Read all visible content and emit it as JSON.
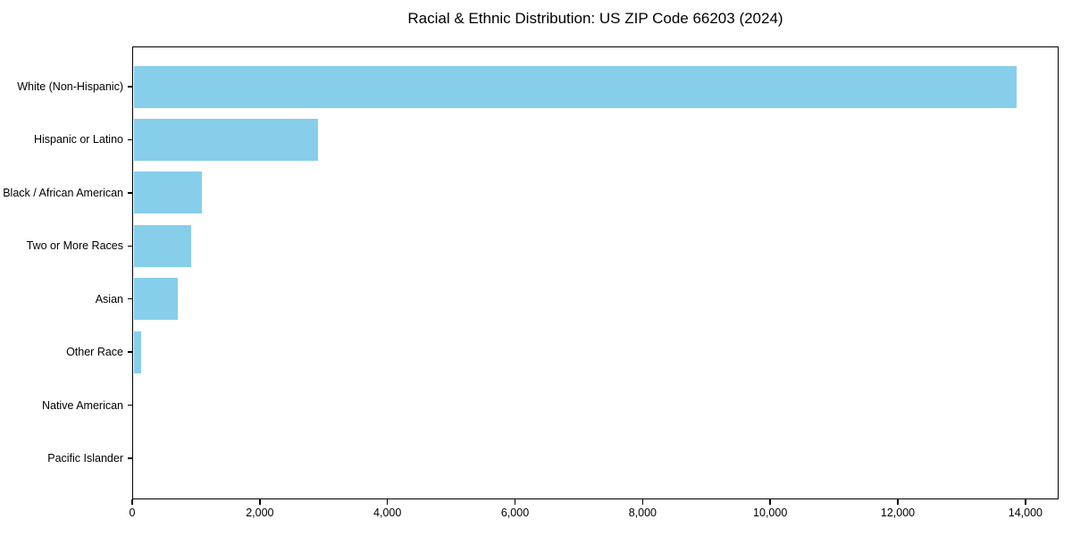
{
  "title": "Racial & Ethnic Distribution: US ZIP Code 66203 (2024)",
  "chart_data": {
    "type": "bar",
    "orientation": "horizontal",
    "title": "Racial & Ethnic Distribution: US ZIP Code 66203 (2024)",
    "xlabel": "",
    "ylabel": "",
    "categories": [
      "White (Non-Hispanic)",
      "Hispanic or Latino",
      "Black / African American",
      "Two or More Races",
      "Asian",
      "Other Race",
      "Native American",
      "Pacific Islander"
    ],
    "values": [
      13830,
      2890,
      1070,
      890,
      690,
      110,
      0,
      0
    ],
    "xlim": [
      0,
      14520
    ],
    "x_ticks": [
      0,
      2000,
      4000,
      6000,
      8000,
      10000,
      12000,
      14000
    ],
    "x_tick_labels": [
      "0",
      "2,000",
      "4,000",
      "6,000",
      "8,000",
      "10,000",
      "12,000",
      "14,000"
    ],
    "bar_color": "#87CEEB",
    "text_color": "#000000",
    "grid": false,
    "legend": null
  }
}
